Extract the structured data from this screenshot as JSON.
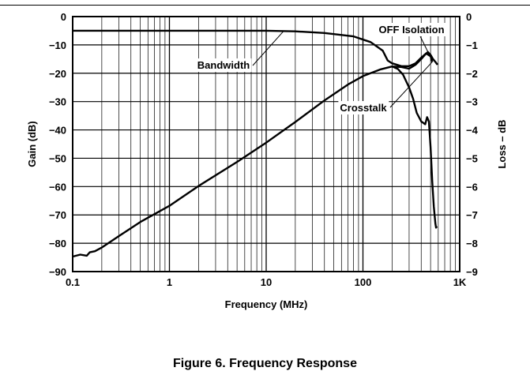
{
  "figure_caption": "Figure 6. Frequency Response",
  "chart_data": {
    "type": "line",
    "xlabel": "Frequency (MHz)",
    "ylabel": "Gain (dB)",
    "y2label": "Loss – dB",
    "x_scale": "log",
    "xlim": [
      0.1,
      1000
    ],
    "ylim": [
      -90,
      0
    ],
    "y2lim": [
      -9,
      0
    ],
    "grid": true,
    "x_tick_labels": [
      "0.1",
      "1",
      "10",
      "100",
      "1K"
    ],
    "x_tick_values": [
      0.1,
      1,
      10,
      100,
      1000
    ],
    "y_tick_labels": [
      "0",
      "−10",
      "−20",
      "−30",
      "−40",
      "−50",
      "−60",
      "−70",
      "−80",
      "−90"
    ],
    "y_tick_values": [
      0,
      -10,
      -20,
      -30,
      -40,
      -50,
      -60,
      -70,
      -80,
      -90
    ],
    "y2_tick_labels": [
      "0",
      "−1",
      "−2",
      "−3",
      "−4",
      "−5",
      "−6",
      "−7",
      "−8",
      "−9"
    ],
    "y2_tick_values": [
      0,
      -1,
      -2,
      -3,
      -4,
      -5,
      -6,
      -7,
      -8,
      -9
    ],
    "series": [
      {
        "name": "Bandwidth",
        "axis": "right",
        "x": [
          0.1,
          1,
          10,
          20,
          40,
          80,
          120,
          160,
          180,
          200,
          250,
          300,
          350,
          400,
          450,
          500,
          520
        ],
        "y": [
          -0.5,
          -0.5,
          -0.5,
          -0.52,
          -0.58,
          -0.7,
          -0.9,
          -1.2,
          -1.55,
          -1.65,
          -1.75,
          -1.75,
          -1.65,
          -1.45,
          -1.3,
          -1.4,
          -1.6
        ]
      },
      {
        "name": "OFF Isolation",
        "axis": "left",
        "x": [
          0.1,
          0.12,
          0.14,
          0.15,
          0.17,
          0.2,
          0.3,
          0.5,
          1,
          2,
          5,
          10,
          20,
          40,
          70,
          100,
          150,
          200,
          250,
          300,
          350,
          400,
          450,
          470,
          500,
          530,
          560,
          590
        ],
        "y": [
          -84.7,
          -84,
          -84.4,
          -83.2,
          -82.8,
          -81.5,
          -77.5,
          -72.5,
          -66.8,
          -59.8,
          -51.3,
          -44.5,
          -37.2,
          -29.6,
          -24,
          -21,
          -18.7,
          -17.6,
          -17.8,
          -18.4,
          -17,
          -15,
          -13,
          -12.5,
          -13.5,
          -15,
          -16,
          -17
        ]
      },
      {
        "name": "Crosstalk",
        "axis": "left",
        "x": [
          200,
          230,
          260,
          300,
          330,
          360,
          400,
          440,
          460,
          480,
          500,
          520,
          540,
          560,
          570,
          580
        ],
        "y": [
          -17.6,
          -18.5,
          -20.5,
          -25,
          -29,
          -34,
          -37,
          -38,
          -35.5,
          -37,
          -46,
          -58,
          -67,
          -73,
          -74.5,
          -74
        ]
      }
    ],
    "annotations": [
      "Bandwidth",
      "OFF Isolation",
      "Crosstalk"
    ]
  }
}
